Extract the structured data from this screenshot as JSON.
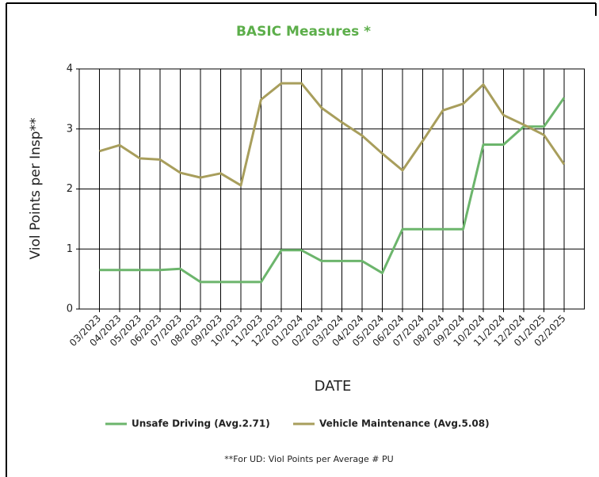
{
  "chart_data": {
    "type": "line",
    "title": "BASIC Measures *",
    "x_label": "DATE",
    "y_label": "Viol Points per Insp**",
    "footnote": "**For UD: Viol Points per Average # PU",
    "categories": [
      "03/2023",
      "04/2023",
      "05/2023",
      "06/2023",
      "07/2023",
      "08/2023",
      "09/2023",
      "10/2023",
      "11/2023",
      "12/2023",
      "01/2024",
      "02/2024",
      "03/2024",
      "04/2024",
      "05/2024",
      "06/2024",
      "07/2024",
      "08/2024",
      "09/2024",
      "10/2024",
      "11/2024",
      "12/2024",
      "01/2025",
      "02/2025"
    ],
    "series": [
      {
        "name": "Unsafe Driving (Avg.2.71)",
        "color": "#6cb56c",
        "values": [
          0.65,
          0.65,
          0.65,
          0.65,
          0.67,
          0.45,
          0.45,
          0.45,
          0.45,
          0.98,
          0.98,
          0.8,
          0.8,
          0.8,
          0.6,
          1.33,
          1.33,
          1.33,
          1.33,
          2.74,
          2.74,
          3.04,
          3.04,
          3.52
        ]
      },
      {
        "name": "Vehicle Maintenance (Avg.5.08)",
        "color": "#a89e5c",
        "values": [
          2.63,
          2.73,
          2.51,
          2.49,
          2.27,
          2.19,
          2.26,
          2.06,
          3.49,
          3.76,
          3.76,
          3.35,
          3.11,
          2.89,
          2.59,
          2.31,
          2.8,
          3.31,
          3.42,
          3.74,
          3.23,
          3.07,
          2.9,
          2.41
        ]
      }
    ],
    "ylim": [
      0,
      4
    ],
    "yticks": [
      0,
      1,
      2,
      3,
      4
    ],
    "grid": true
  }
}
